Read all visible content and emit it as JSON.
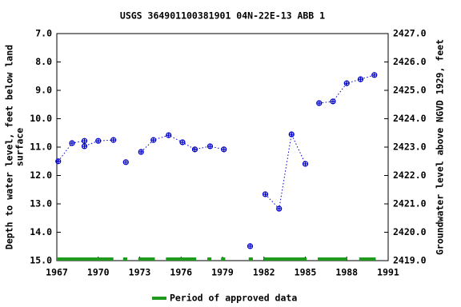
{
  "chart_data": {
    "type": "scatter",
    "title": "USGS 364901100381901 04N-22E-13 ABB 1",
    "ylabel": [
      "Depth to water level, feet below land",
      "surface"
    ],
    "y2label": "Groundwater level above NGVD 1929, feet",
    "xlim": [
      1967,
      1991
    ],
    "xticks": [
      1967,
      1970,
      1973,
      1976,
      1979,
      1982,
      1985,
      1988,
      1991
    ],
    "ylim": [
      7,
      15
    ],
    "invert_y": true,
    "yticks": [
      {
        "value": 7,
        "label": "7.0"
      },
      {
        "value": 8,
        "label": "8.0"
      },
      {
        "value": 9,
        "label": "9.0"
      },
      {
        "value": 10,
        "label": "10.0"
      },
      {
        "value": 11,
        "label": "11.0"
      },
      {
        "value": 12,
        "label": "12.0"
      },
      {
        "value": 13,
        "label": "13.0"
      },
      {
        "value": 14,
        "label": "14.0"
      },
      {
        "value": 15,
        "label": "15.0"
      }
    ],
    "y2lim": [
      2419,
      2427
    ],
    "y2ticks": [
      {
        "value": 2419,
        "label": "2419.0"
      },
      {
        "value": 2420,
        "label": "2420.0"
      },
      {
        "value": 2421,
        "label": "2421.0"
      },
      {
        "value": 2422,
        "label": "2422.0"
      },
      {
        "value": 2423,
        "label": "2423.0"
      },
      {
        "value": 2424,
        "label": "2424.0"
      },
      {
        "value": 2425,
        "label": "2425.0"
      },
      {
        "value": 2426,
        "label": "2426.0"
      },
      {
        "value": 2427,
        "label": "2427.0"
      }
    ],
    "series": [
      {
        "color": "#0000cc",
        "x": [
          1967.1,
          1968.1,
          1969.0,
          1969.0,
          1970.0,
          1971.1,
          null,
          1972.0,
          null,
          1973.1,
          1974.0,
          1975.1,
          1976.1,
          1977.0,
          1978.1,
          1979.1,
          null,
          1981.0,
          null,
          1982.1,
          1983.1,
          1984.0,
          1985.0,
          null,
          1986.0,
          1987.0,
          1988.0,
          1989.0,
          1990.0
        ],
        "values": [
          11.5,
          10.86,
          10.78,
          10.97,
          10.78,
          10.75,
          null,
          11.53,
          null,
          11.17,
          10.75,
          10.58,
          10.83,
          11.08,
          10.97,
          11.08,
          null,
          14.49,
          null,
          12.66,
          13.17,
          10.55,
          11.59,
          null,
          9.45,
          9.39,
          8.75,
          8.61,
          8.46
        ]
      }
    ],
    "approved_periods": [
      [
        1967.0,
        1971.1
      ],
      [
        1971.8,
        1972.1
      ],
      [
        1972.9,
        1974.1
      ],
      [
        1974.9,
        1977.1
      ],
      [
        1977.9,
        1978.2
      ],
      [
        1978.9,
        1979.2
      ],
      [
        1980.9,
        1981.2
      ],
      [
        1982.0,
        1985.1
      ],
      [
        1985.9,
        1988.0
      ],
      [
        1988.9,
        1990.1
      ]
    ],
    "approved_color": "#1f9a1f",
    "legend": "Period of approved data"
  }
}
